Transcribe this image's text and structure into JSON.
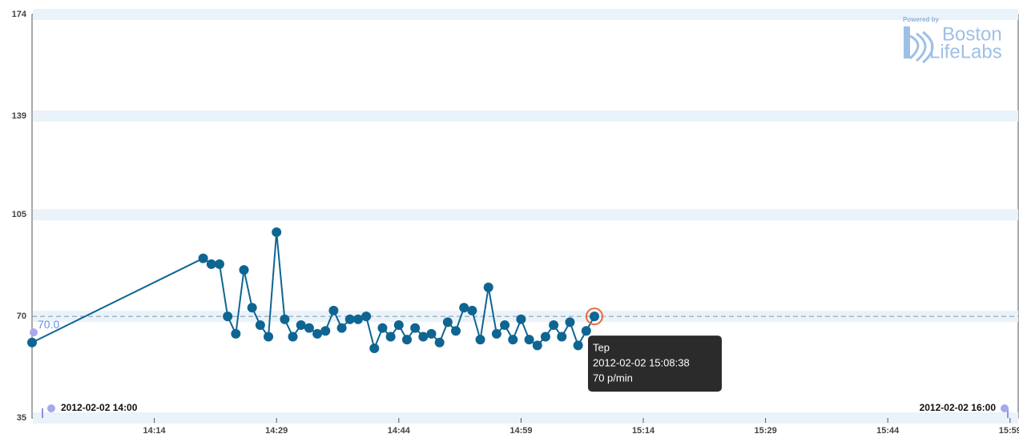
{
  "chart_data": {
    "type": "line",
    "x": [
      "13:59",
      "14:20",
      "14:21",
      "14:22",
      "14:23",
      "14:24",
      "14:25",
      "14:26",
      "14:27",
      "14:28",
      "14:29",
      "14:30",
      "14:31",
      "14:32",
      "14:33",
      "14:34",
      "14:35",
      "14:36",
      "14:37",
      "14:38",
      "14:39",
      "14:40",
      "14:41",
      "14:42",
      "14:43",
      "14:44",
      "14:45",
      "14:46",
      "14:47",
      "14:48",
      "14:49",
      "14:50",
      "14:51",
      "14:52",
      "14:53",
      "14:54",
      "14:55",
      "14:56",
      "14:57",
      "14:58",
      "14:59",
      "15:00",
      "15:01",
      "15:02",
      "15:03",
      "15:04",
      "15:05",
      "15:06",
      "15:07",
      "15:08"
    ],
    "series": [
      {
        "name": "Tep",
        "color": "#0e6592",
        "values": [
          61,
          90,
          88,
          88,
          70,
          64,
          86,
          73,
          67,
          63,
          99,
          69,
          63,
          67,
          66,
          64,
          65,
          72,
          66,
          69,
          69,
          70,
          59,
          66,
          63,
          67,
          62,
          66,
          63,
          64,
          61,
          68,
          65,
          73,
          72,
          62,
          80,
          64,
          67,
          62,
          69,
          62,
          60,
          63,
          67,
          63,
          68,
          60,
          65,
          70
        ]
      }
    ],
    "xlim": [
      "13:59",
      "16:00"
    ],
    "xticks": [
      "14:14",
      "14:29",
      "14:44",
      "14:59",
      "15:14",
      "15:29",
      "15:44",
      "15:59"
    ],
    "ylim": [
      35,
      174
    ],
    "yticks": [
      35,
      70,
      105,
      139,
      174
    ],
    "reference": {
      "value": 70,
      "label": "70.0"
    },
    "range_labels": [
      "2012-02-02 14:00",
      "2012-02-02 16:00"
    ],
    "tooltip": {
      "time": "2012-02-02 15:08:38",
      "value_label": "70 p/min"
    },
    "logo": {
      "caption": "Powered by",
      "line1": "Boston",
      "line2": "LifeLabs"
    }
  }
}
